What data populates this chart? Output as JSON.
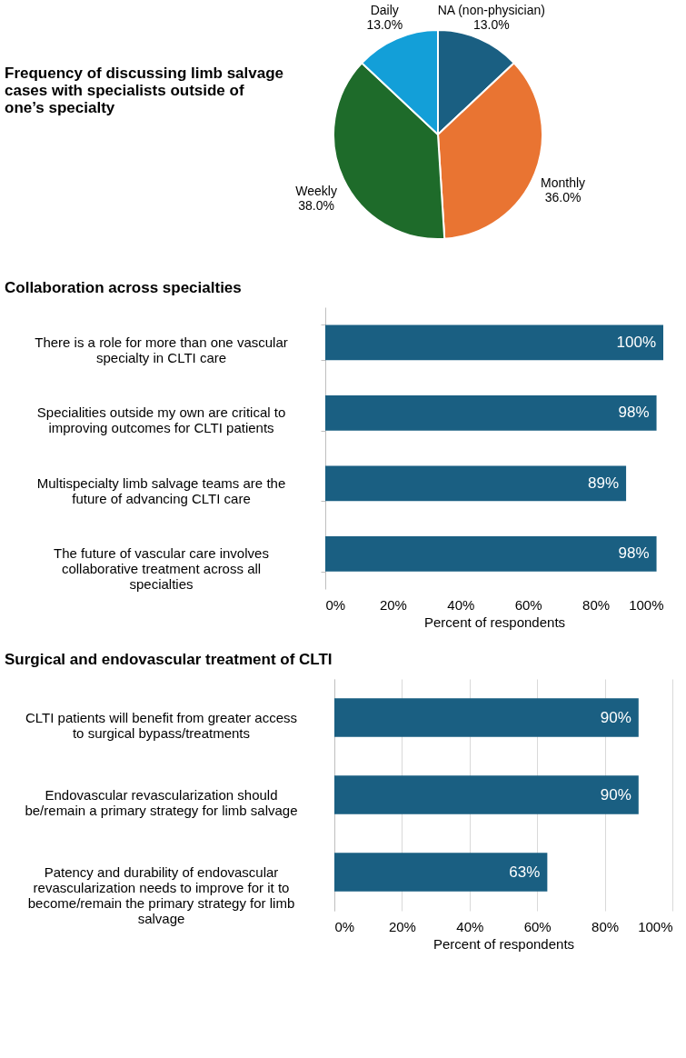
{
  "chart_data": [
    {
      "type": "pie",
      "title": "Frequency of discussing limb salvage cases with specialists outside of one’s specialty",
      "categories": [
        "NA (non-physician)",
        "Monthly",
        "Weekly",
        "Daily"
      ],
      "values": [
        13.0,
        36.0,
        38.0,
        13.0
      ],
      "value_labels": [
        "13.0%",
        "36.0%",
        "38.0%",
        "13.0%"
      ],
      "colors": [
        "#1a5f82",
        "#e97432",
        "#1e6b2a",
        "#139fd8"
      ]
    },
    {
      "type": "bar",
      "orientation": "horizontal",
      "title": "Collaboration across specialties",
      "xlabel": "Percent of respondents",
      "categories": [
        "There is a role for more than one vascular specialty in CLTI care",
        "Specialities outside my own are critical to improving outcomes for CLTI patients",
        "Multispecialty limb salvage teams are the future of advancing CLTI care",
        "The future of vascular care involves collaborative treatment across all specialties"
      ],
      "values": [
        100,
        98,
        89,
        98
      ],
      "value_labels": [
        "100%",
        "98%",
        "89%",
        "98%"
      ],
      "color": "#1a5f82",
      "xlim": [
        0,
        100
      ],
      "xticks": [
        {
          "value": 0,
          "label": "0%"
        },
        {
          "value": 20,
          "label": "20%"
        },
        {
          "value": 40,
          "label": "40%"
        },
        {
          "value": 60,
          "label": "60%"
        },
        {
          "value": 80,
          "label": "80%"
        },
        {
          "value": 100,
          "label": "100%"
        }
      ],
      "grid": false
    },
    {
      "type": "bar",
      "orientation": "horizontal",
      "title": "Surgical and endovascular treatment of CLTI",
      "xlabel": "Percent of respondents",
      "categories": [
        "CLTI patients will benefit from greater access to surgical bypass/treatments",
        "Endovascular revascularization should be/remain a primary strategy for limb salvage",
        "Patency and durability of endovascular revascularization needs to improve for it to become/remain the primary strategy for limb salvage"
      ],
      "values": [
        90,
        90,
        63
      ],
      "value_labels": [
        "90%",
        "90%",
        "63%"
      ],
      "color": "#1a5f82",
      "xlim": [
        0,
        100
      ],
      "xticks": [
        {
          "value": 0,
          "label": "0%"
        },
        {
          "value": 20,
          "label": "20%"
        },
        {
          "value": 40,
          "label": "40%"
        },
        {
          "value": 60,
          "label": "60%"
        },
        {
          "value": 80,
          "label": "80%"
        },
        {
          "value": 100,
          "label": "100%"
        }
      ],
      "grid": "x"
    }
  ]
}
